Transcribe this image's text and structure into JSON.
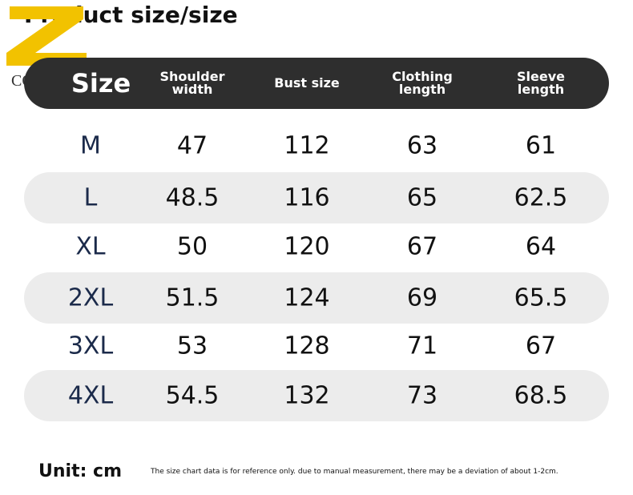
{
  "title": "Product size/size",
  "logo": {
    "text": "COMX"
  },
  "table": {
    "header": [
      "Size",
      "Shoulder width",
      "Bust size",
      "Clothing length",
      "Sleeve length"
    ],
    "rows": [
      [
        "M",
        "47",
        "112",
        "63",
        "61"
      ],
      [
        "L",
        "48.5",
        "116",
        "65",
        "62.5"
      ],
      [
        "XL",
        "50",
        "120",
        "67",
        "64"
      ],
      [
        "2XL",
        "51.5",
        "124",
        "69",
        "65.5"
      ],
      [
        "3XL",
        "53",
        "128",
        "71",
        "67"
      ],
      [
        "4XL",
        "54.5",
        "132",
        "73",
        "68.5"
      ]
    ]
  },
  "footer": {
    "unit": "Unit: cm",
    "note": "The size chart data is for reference only. due to manual measurement, there may be a deviation of about 1-2cm."
  }
}
